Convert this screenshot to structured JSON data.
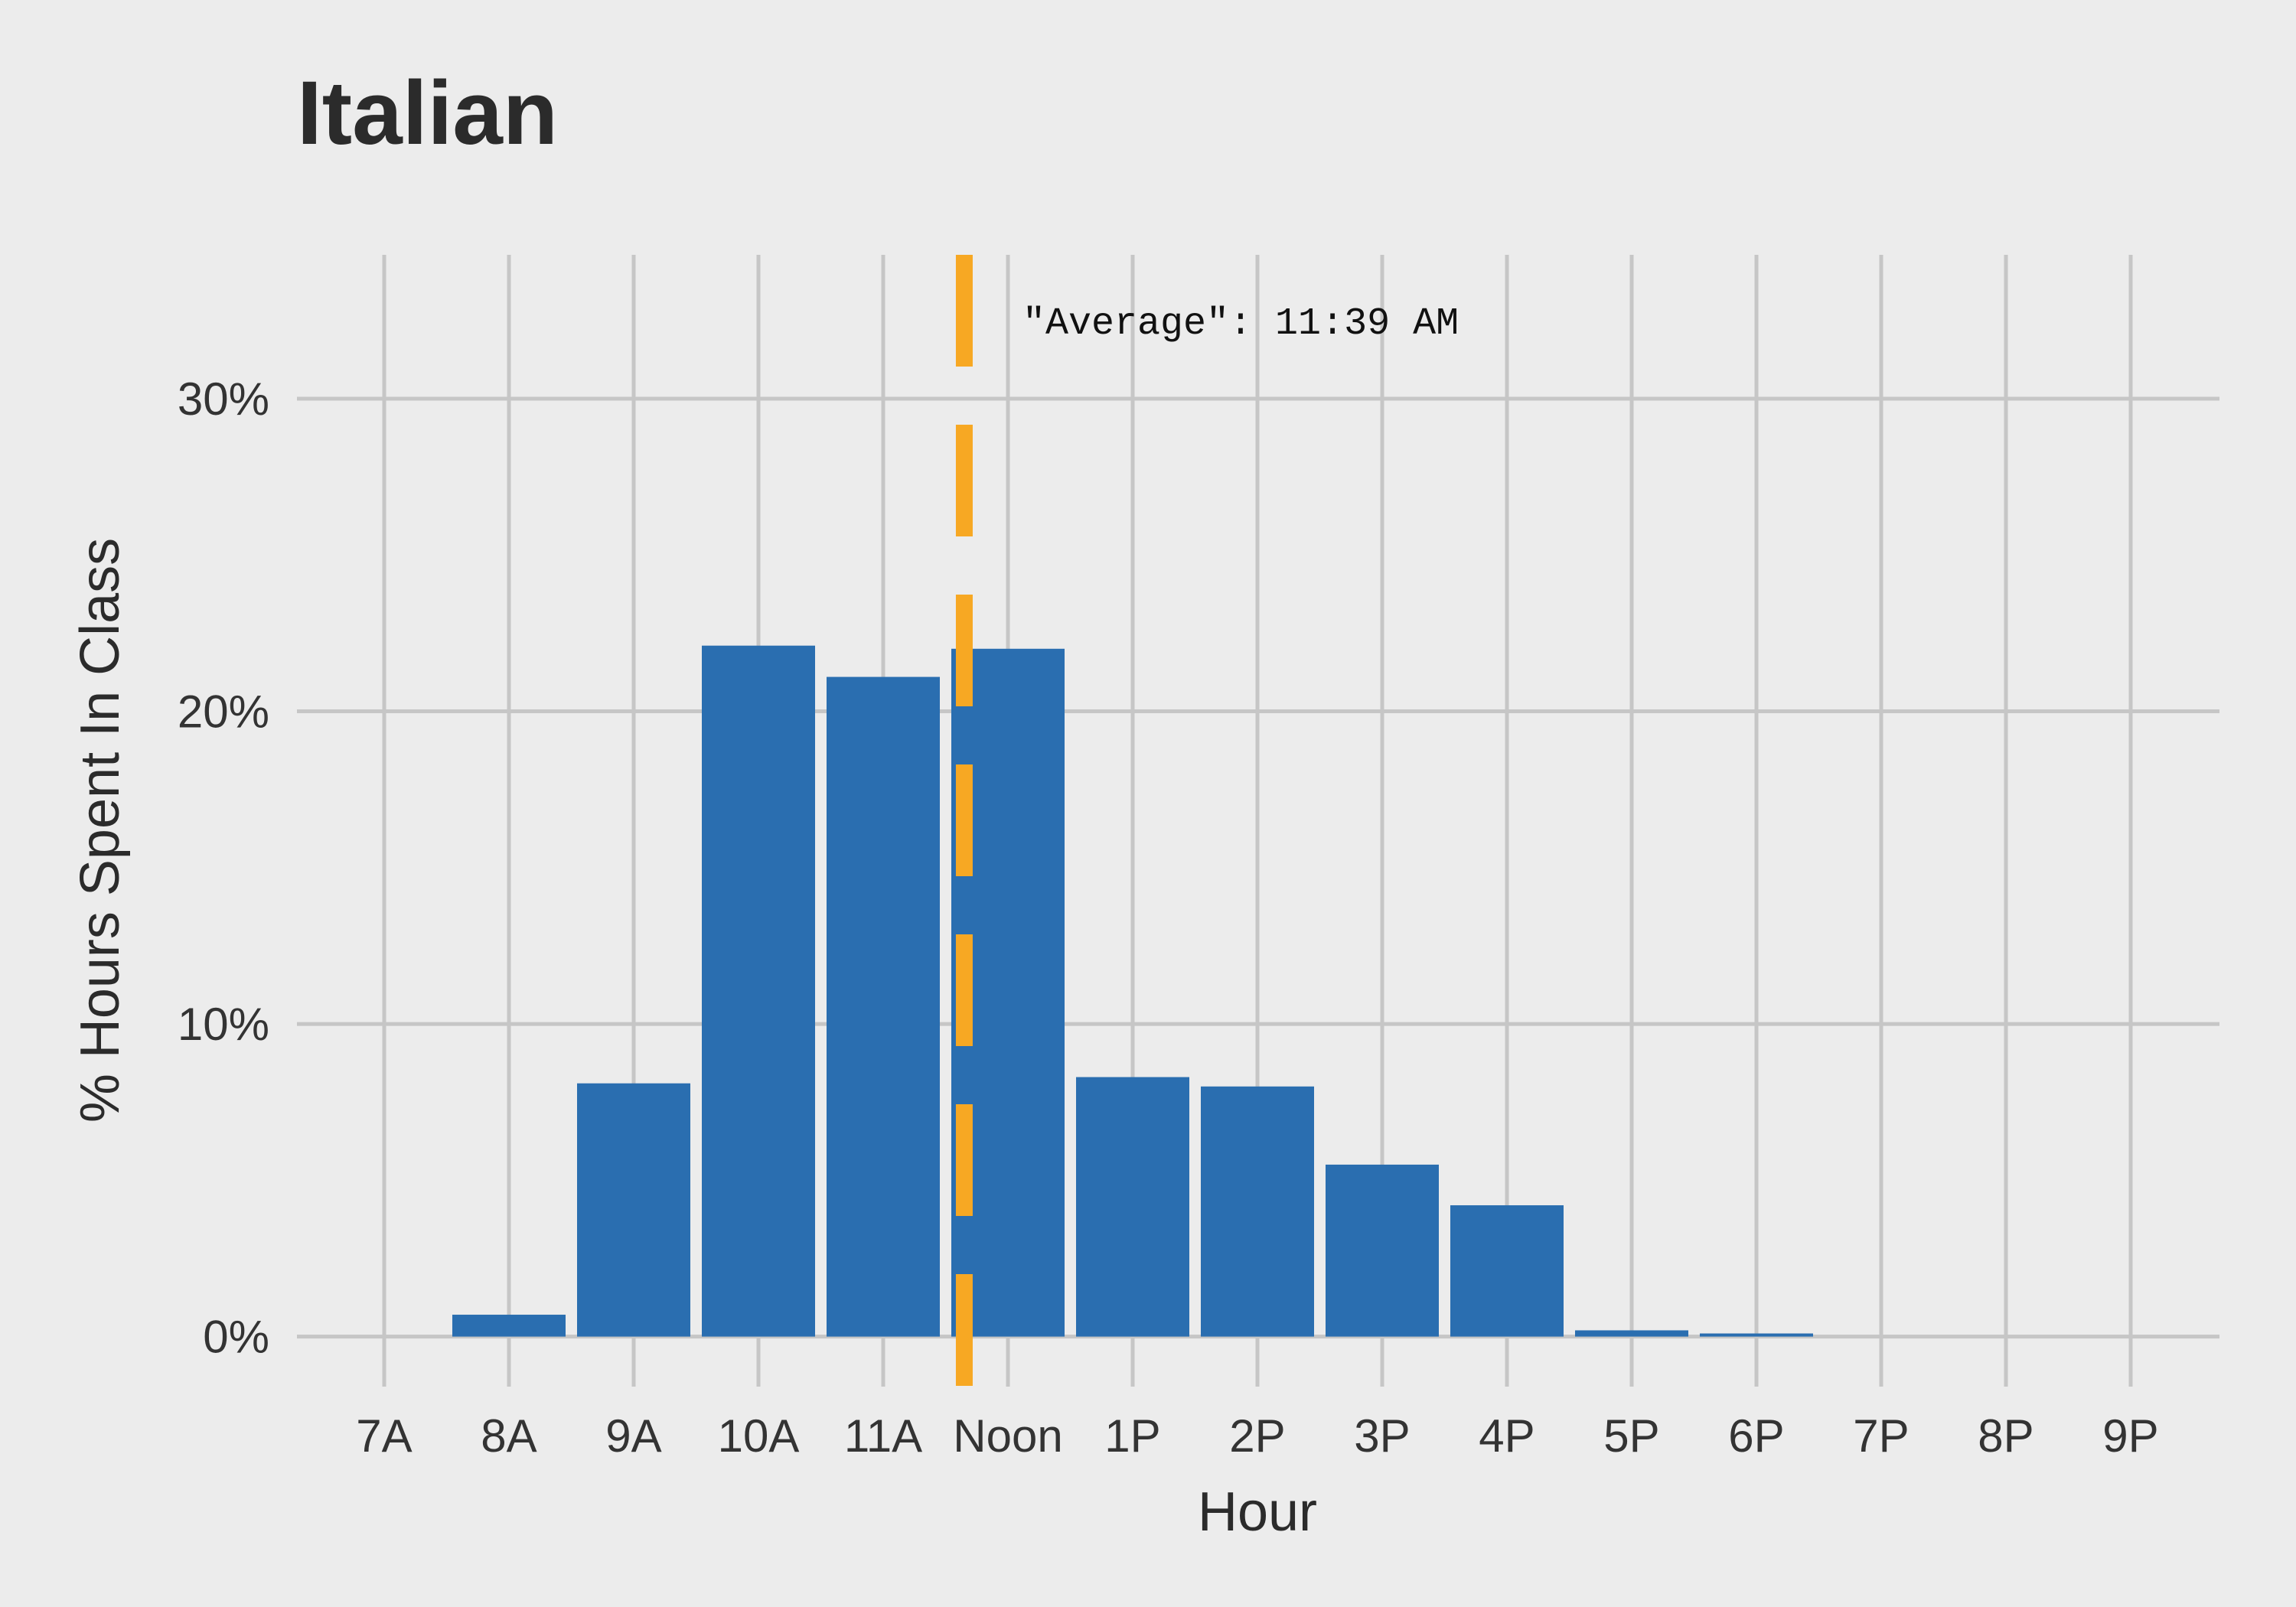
{
  "chart_data": {
    "type": "bar",
    "title": "Italian",
    "xlabel": "Hour",
    "ylabel": "% Hours Spent In Class",
    "categories": [
      "7A",
      "8A",
      "9A",
      "10A",
      "11A",
      "Noon",
      "1P",
      "2P",
      "3P",
      "4P",
      "5P",
      "6P",
      "7P",
      "8P",
      "9P"
    ],
    "values": [
      0,
      0.7,
      8.1,
      22.1,
      21.1,
      22.0,
      8.3,
      8.0,
      5.5,
      4.2,
      0.2,
      0.1,
      0,
      0,
      0
    ],
    "value_unit": "%",
    "ylim": [
      -1.6,
      34.6
    ],
    "yticks": [
      0,
      10,
      20,
      30
    ],
    "ytick_labels": [
      "0%",
      "10%",
      "20%",
      "30%"
    ],
    "grid": true,
    "legend": "none",
    "average_line": {
      "label": "\"Average\": 11:39 AM",
      "x_hour": 11.65
    },
    "colors": {
      "background": "#ececec",
      "bar": "#2a6eb0",
      "grid": "#c6c6c6",
      "average_line": "#f7a823",
      "text": "#333333"
    }
  }
}
